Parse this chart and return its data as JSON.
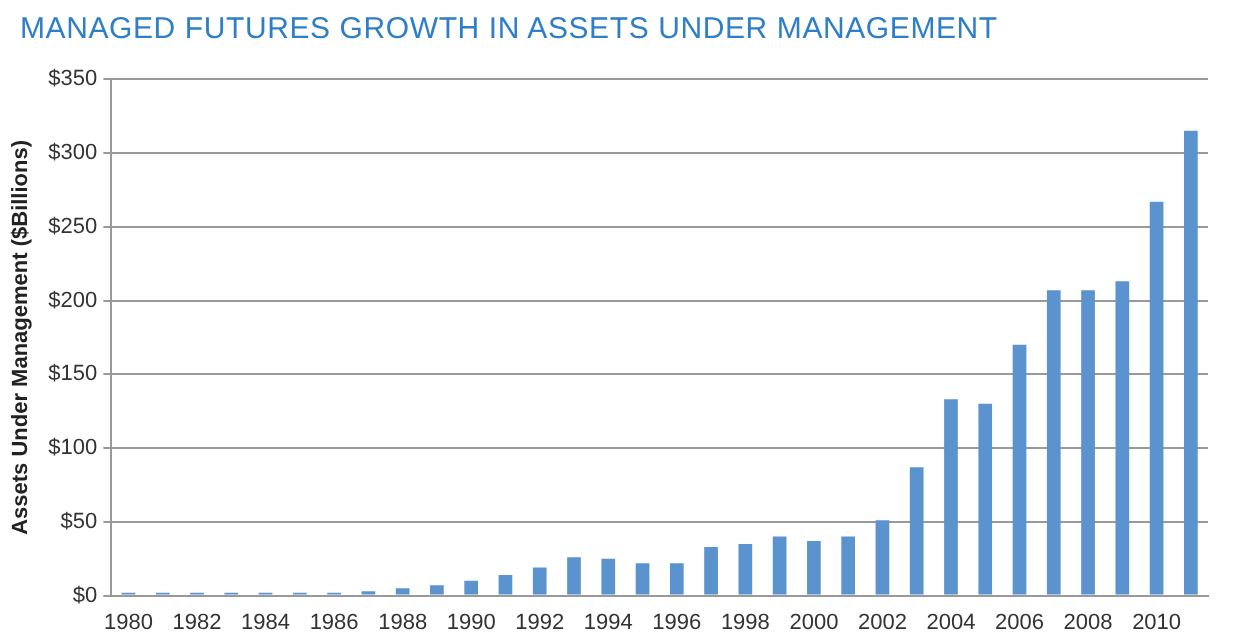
{
  "chart_data": {
    "type": "bar",
    "title": "MANAGED FUTURES GROWTH IN ASSETS UNDER MANAGEMENT",
    "ylabel": "Assets Under Management ($Billions)",
    "categories": [
      "1980",
      null,
      "1982",
      null,
      "1984",
      null,
      "1986",
      null,
      "1988",
      null,
      "1990",
      null,
      "1992",
      null,
      "1994",
      null,
      "1996",
      null,
      "1998",
      null,
      "2000",
      null,
      "2002",
      null,
      "2004",
      null,
      "2006",
      null,
      "2008",
      null,
      "2010",
      null
    ],
    "values": [
      2,
      2,
      2,
      2,
      2,
      2,
      2,
      3,
      5,
      7,
      10,
      14,
      19,
      26,
      25,
      22,
      22,
      33,
      35,
      40,
      37,
      40,
      51,
      87,
      133,
      130,
      170,
      207,
      207,
      213,
      267,
      315
    ],
    "color": "#5b93cf",
    "ylim": [
      0,
      350
    ],
    "yticks": [
      {
        "value": 0,
        "label": "$0"
      },
      {
        "value": 50,
        "label": "$50"
      },
      {
        "value": 100,
        "label": "$100"
      },
      {
        "value": 150,
        "label": "$150"
      },
      {
        "value": 200,
        "label": "$200"
      },
      {
        "value": 250,
        "label": "$250"
      },
      {
        "value": 300,
        "label": "$300"
      },
      {
        "value": 350,
        "label": "$350"
      }
    ],
    "grid": "y"
  }
}
